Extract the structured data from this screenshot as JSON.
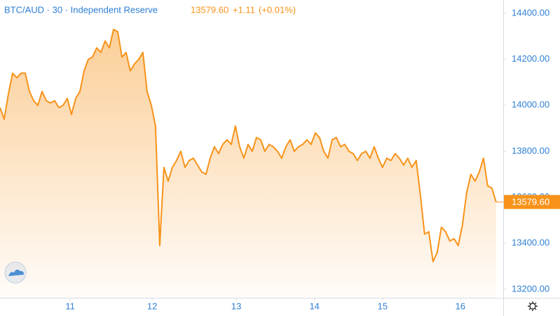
{
  "chart_data": {
    "type": "area",
    "title": "BTC/AUD · 30 · Independent Reserve",
    "last": "13579.60",
    "change": "+1.11",
    "change_pct": "(+0.01%)",
    "last_label": "13579.60",
    "x": [
      0,
      1,
      2,
      3,
      4,
      5,
      6,
      7,
      8,
      9,
      10,
      11,
      12,
      13,
      14,
      15,
      16,
      17,
      18,
      19,
      20,
      21,
      22,
      23,
      24,
      25,
      26,
      27,
      28,
      29,
      30,
      31,
      32,
      33,
      34,
      35,
      36,
      37,
      38,
      39,
      40,
      41,
      42,
      43,
      44,
      45,
      46,
      47,
      48,
      49,
      50,
      51,
      52,
      53,
      54,
      55,
      56,
      57,
      58,
      59,
      60,
      61,
      62,
      63,
      64,
      65,
      66,
      67,
      68,
      69,
      70,
      71,
      72,
      73,
      74,
      75,
      76,
      77,
      78,
      79,
      80,
      81,
      82,
      83,
      84,
      85,
      86,
      87,
      88,
      89,
      90,
      91,
      92,
      93,
      94,
      95,
      96,
      97,
      98,
      99,
      100,
      101,
      102,
      103,
      104,
      105,
      106,
      107,
      108,
      109,
      110,
      111,
      112,
      113,
      114,
      115,
      116,
      117,
      118
    ],
    "series": [
      {
        "name": "BTC/AUD",
        "color": "#f7931a",
        "values": [
          13990,
          13940,
          14050,
          14140,
          14120,
          14140,
          14140,
          14060,
          14020,
          14000,
          14060,
          14020,
          14010,
          14020,
          13990,
          14000,
          14030,
          13960,
          14030,
          14060,
          14150,
          14200,
          14210,
          14250,
          14230,
          14280,
          14250,
          14330,
          14320,
          14210,
          14230,
          14150,
          14180,
          14200,
          14230,
          14060,
          14000,
          13910,
          13390,
          13730,
          13670,
          13730,
          13760,
          13800,
          13730,
          13760,
          13770,
          13740,
          13710,
          13700,
          13770,
          13820,
          13790,
          13830,
          13850,
          13830,
          13910,
          13820,
          13770,
          13830,
          13800,
          13860,
          13850,
          13800,
          13830,
          13820,
          13800,
          13770,
          13820,
          13850,
          13800,
          13820,
          13830,
          13850,
          13830,
          13880,
          13860,
          13800,
          13770,
          13850,
          13860,
          13820,
          13830,
          13800,
          13790,
          13760,
          13790,
          13800,
          13770,
          13820,
          13770,
          13730,
          13770,
          13760,
          13790,
          13770,
          13740,
          13770,
          13730,
          13760,
          13610,
          13440,
          13450,
          13320,
          13360,
          13470,
          13450,
          13410,
          13420,
          13390,
          13480,
          13620,
          13700,
          13670,
          13710,
          13770,
          13650,
          13640,
          13579.6
        ]
      }
    ],
    "xlim": [
      0,
      119.7
    ],
    "xticks": [
      {
        "value": 16.7,
        "label": "11"
      },
      {
        "value": 36.2,
        "label": "12"
      },
      {
        "value": 56.2,
        "label": "13"
      },
      {
        "value": 74.8,
        "label": "14"
      },
      {
        "value": 91,
        "label": "15"
      },
      {
        "value": 109.5,
        "label": "16"
      }
    ],
    "ylim": [
      13163,
      14458
    ],
    "yticks": [
      {
        "value": 13200,
        "label": "13200.00"
      },
      {
        "value": 13400,
        "label": "13400.00"
      },
      {
        "value": 13600,
        "label": "13600.00"
      },
      {
        "value": 13800,
        "label": "13800.00"
      },
      {
        "value": 14000,
        "label": "14000.00"
      },
      {
        "value": 14200,
        "label": "14200.00"
      },
      {
        "value": 14400,
        "label": "14400.00"
      }
    ],
    "grid": false
  }
}
